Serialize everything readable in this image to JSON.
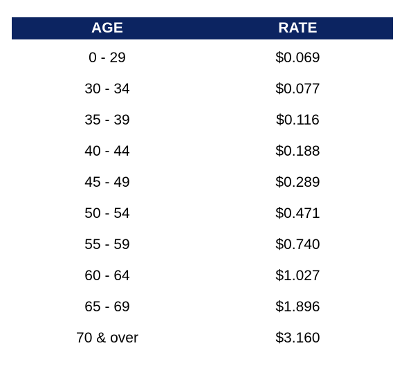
{
  "table": {
    "headers": {
      "age": "AGE",
      "rate": "RATE"
    },
    "rows": [
      {
        "age": "0 - 29",
        "rate": "$0.069"
      },
      {
        "age": "30 - 34",
        "rate": "$0.077"
      },
      {
        "age": "35 - 39",
        "rate": "$0.116"
      },
      {
        "age": "40 - 44",
        "rate": "$0.188"
      },
      {
        "age": "45 - 49",
        "rate": "$0.289"
      },
      {
        "age": "50 - 54",
        "rate": "$0.471"
      },
      {
        "age": "55 - 59",
        "rate": "$0.740"
      },
      {
        "age": "60 - 64",
        "rate": "$1.027"
      },
      {
        "age": "65 - 69",
        "rate": "$1.896"
      },
      {
        "age": "70 & over",
        "rate": "$3.160"
      }
    ]
  },
  "colors": {
    "header_background": "#0c2461",
    "header_text": "#ffffff",
    "body_text": "#000000"
  }
}
